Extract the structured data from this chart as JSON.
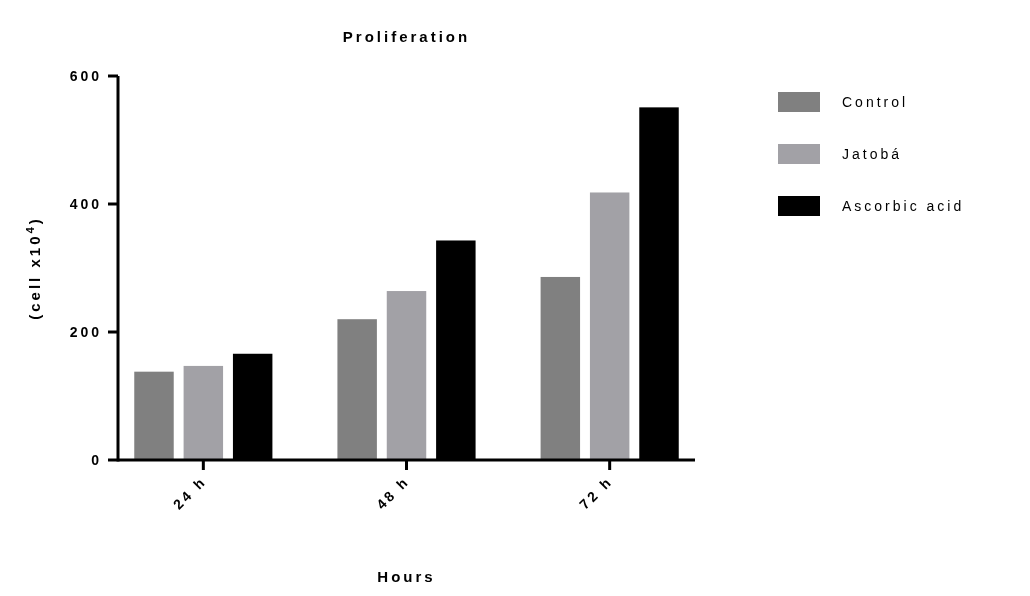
{
  "chart_data": {
    "type": "bar",
    "title": "Proliferation",
    "xlabel": "Hours",
    "ylabel": "(cell x10$^{4}$)",
    "categories": [
      "24 h",
      "48 h",
      "72 h"
    ],
    "series": [
      {
        "name": "Control",
        "color": "#808080",
        "values": [
          138,
          220,
          286
        ]
      },
      {
        "name": "Jatobá",
        "color": "#a2a1a6",
        "values": [
          147,
          264,
          418
        ]
      },
      {
        "name": "Ascorbic acid",
        "color": "#000000",
        "values": [
          166,
          343,
          551
        ]
      }
    ],
    "ylim": [
      0,
      600
    ],
    "yticks": [
      0,
      200,
      400,
      600
    ],
    "grid": false,
    "legend": "top right"
  }
}
